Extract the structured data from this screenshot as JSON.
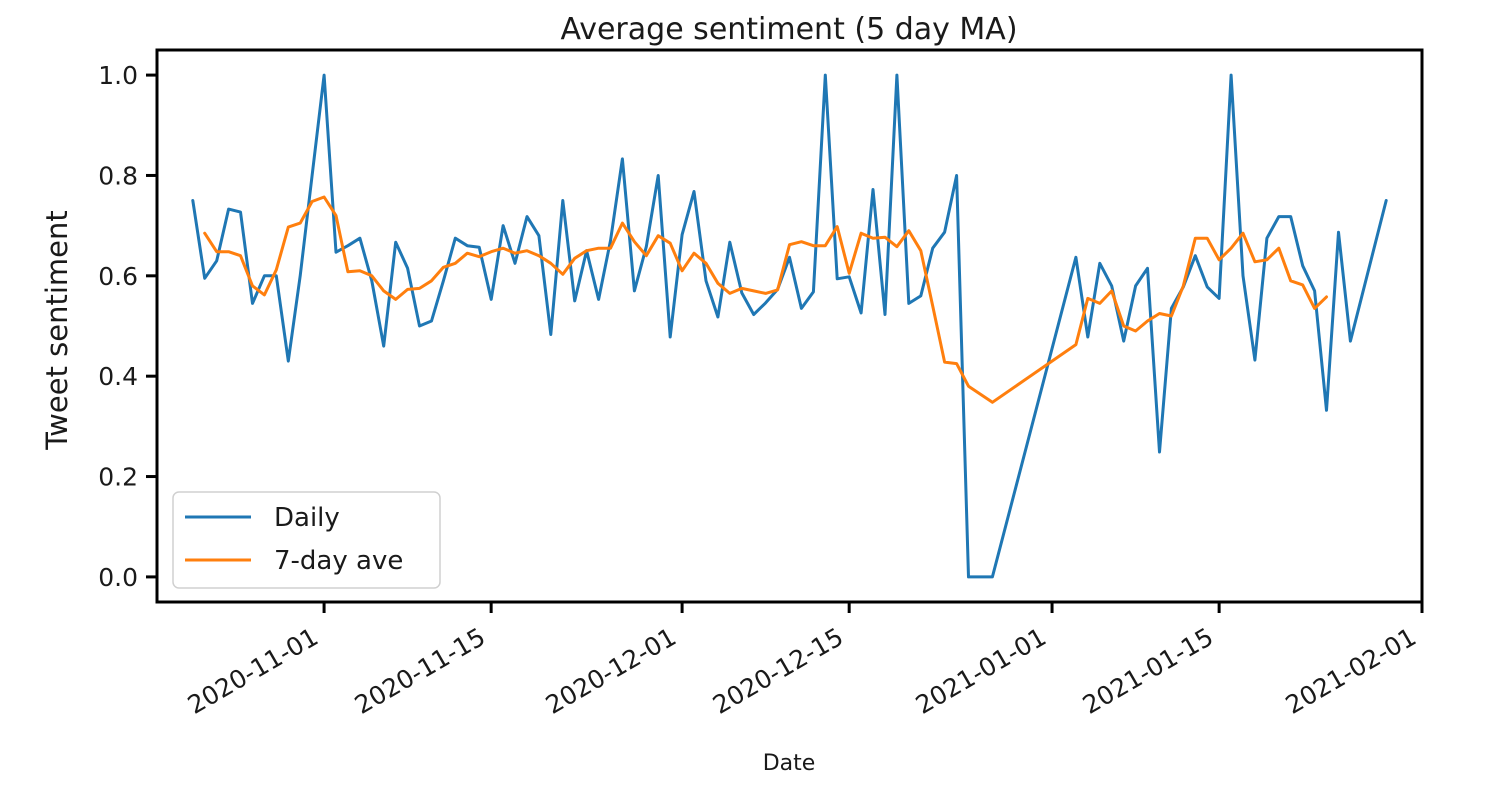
{
  "chart_data": {
    "type": "line",
    "title": "Average sentiment (5 day MA)",
    "xlabel": "Date",
    "ylabel": "Tweet sentiment",
    "xlim": [
      "2020-10-18",
      "2021-02-01"
    ],
    "ylim": [
      -0.05,
      1.05
    ],
    "yticks": [
      "0.0",
      "0.2",
      "0.4",
      "0.6",
      "0.8",
      "1.0"
    ],
    "xticks": [
      "2020-11-01",
      "2020-11-15",
      "2020-12-01",
      "2020-12-15",
      "2021-01-01",
      "2021-01-15",
      "2021-02-01"
    ],
    "grid": false,
    "legend_position": "lower-left",
    "series": [
      {
        "name": "Daily",
        "color": "#1f77b4",
        "points": [
          [
            "2020-10-21",
            0.75
          ],
          [
            "2020-10-22",
            0.595
          ],
          [
            "2020-10-23",
            0.63
          ],
          [
            "2020-10-24",
            0.733
          ],
          [
            "2020-10-25",
            0.727
          ],
          [
            "2020-10-26",
            0.545
          ],
          [
            "2020-10-27",
            0.6
          ],
          [
            "2020-10-28",
            0.6
          ],
          [
            "2020-10-29",
            0.43
          ],
          [
            "2020-10-30",
            0.6
          ],
          [
            "2020-10-31",
            0.8
          ],
          [
            "2020-11-01",
            1.0
          ],
          [
            "2020-11-02",
            0.647
          ],
          [
            "2020-11-03",
            0.66
          ],
          [
            "2020-11-04",
            0.675
          ],
          [
            "2020-11-05",
            0.59
          ],
          [
            "2020-11-06",
            0.46
          ],
          [
            "2020-11-07",
            0.667
          ],
          [
            "2020-11-08",
            0.615
          ],
          [
            "2020-11-09",
            0.5
          ],
          [
            "2020-11-10",
            0.51
          ],
          [
            "2020-11-11",
            0.59
          ],
          [
            "2020-11-12",
            0.675
          ],
          [
            "2020-11-13",
            0.66
          ],
          [
            "2020-11-14",
            0.657
          ],
          [
            "2020-11-15",
            0.553
          ],
          [
            "2020-11-16",
            0.7
          ],
          [
            "2020-11-17",
            0.625
          ],
          [
            "2020-11-18",
            0.718
          ],
          [
            "2020-11-19",
            0.68
          ],
          [
            "2020-11-20",
            0.483
          ],
          [
            "2020-11-21",
            0.75
          ],
          [
            "2020-11-22",
            0.55
          ],
          [
            "2020-11-23",
            0.65
          ],
          [
            "2020-11-24",
            0.553
          ],
          [
            "2020-11-25",
            0.67
          ],
          [
            "2020-11-26",
            0.833
          ],
          [
            "2020-11-27",
            0.57
          ],
          [
            "2020-11-28",
            0.658
          ],
          [
            "2020-11-29",
            0.8
          ],
          [
            "2020-11-30",
            0.478
          ],
          [
            "2020-12-01",
            0.682
          ],
          [
            "2020-12-02",
            0.768
          ],
          [
            "2020-12-03",
            0.59
          ],
          [
            "2020-12-04",
            0.518
          ],
          [
            "2020-12-05",
            0.667
          ],
          [
            "2020-12-06",
            0.566
          ],
          [
            "2020-12-07",
            0.523
          ],
          [
            "2020-12-08",
            0.546
          ],
          [
            "2020-12-09",
            0.573
          ],
          [
            "2020-12-10",
            0.637
          ],
          [
            "2020-12-11",
            0.535
          ],
          [
            "2020-12-12",
            0.568
          ],
          [
            "2020-12-13",
            1.0
          ],
          [
            "2020-12-14",
            0.594
          ],
          [
            "2020-12-15",
            0.598
          ],
          [
            "2020-12-16",
            0.526
          ],
          [
            "2020-12-17",
            0.772
          ],
          [
            "2020-12-18",
            0.523
          ],
          [
            "2020-12-19",
            1.0
          ],
          [
            "2020-12-20",
            0.545
          ],
          [
            "2020-12-21",
            0.56
          ],
          [
            "2020-12-22",
            0.655
          ],
          [
            "2020-12-23",
            0.687
          ],
          [
            "2020-12-24",
            0.8
          ],
          [
            "2020-12-25",
            0.0
          ],
          [
            "2020-12-27",
            0.0
          ],
          [
            "2021-01-03",
            0.637
          ],
          [
            "2021-01-04",
            0.478
          ],
          [
            "2021-01-05",
            0.625
          ],
          [
            "2021-01-06",
            0.58
          ],
          [
            "2021-01-07",
            0.47
          ],
          [
            "2021-01-08",
            0.58
          ],
          [
            "2021-01-09",
            0.615
          ],
          [
            "2021-01-10",
            0.249
          ],
          [
            "2021-01-11",
            0.535
          ],
          [
            "2021-01-12",
            0.578
          ],
          [
            "2021-01-13",
            0.64
          ],
          [
            "2021-01-14",
            0.578
          ],
          [
            "2021-01-15",
            0.555
          ],
          [
            "2021-01-16",
            1.0
          ],
          [
            "2021-01-17",
            0.6
          ],
          [
            "2021-01-18",
            0.432
          ],
          [
            "2021-01-19",
            0.675
          ],
          [
            "2021-01-20",
            0.718
          ],
          [
            "2021-01-21",
            0.718
          ],
          [
            "2021-01-22",
            0.62
          ],
          [
            "2021-01-23",
            0.57
          ],
          [
            "2021-01-24",
            0.332
          ],
          [
            "2021-01-25",
            0.687
          ],
          [
            "2021-01-26",
            0.47
          ],
          [
            "2021-01-29",
            0.75
          ]
        ]
      },
      {
        "name": "7-day ave",
        "color": "#ff7f0e",
        "points": [
          [
            "2020-10-22",
            0.685
          ],
          [
            "2020-10-23",
            0.648
          ],
          [
            "2020-10-24",
            0.648
          ],
          [
            "2020-10-25",
            0.64
          ],
          [
            "2020-10-26",
            0.58
          ],
          [
            "2020-10-27",
            0.562
          ],
          [
            "2020-10-28",
            0.612
          ],
          [
            "2020-10-29",
            0.697
          ],
          [
            "2020-10-30",
            0.705
          ],
          [
            "2020-10-31",
            0.748
          ],
          [
            "2020-11-01",
            0.757
          ],
          [
            "2020-11-02",
            0.72
          ],
          [
            "2020-11-03",
            0.608
          ],
          [
            "2020-11-04",
            0.61
          ],
          [
            "2020-11-05",
            0.6
          ],
          [
            "2020-11-06",
            0.57
          ],
          [
            "2020-11-07",
            0.553
          ],
          [
            "2020-11-08",
            0.573
          ],
          [
            "2020-11-09",
            0.575
          ],
          [
            "2020-11-10",
            0.59
          ],
          [
            "2020-11-11",
            0.617
          ],
          [
            "2020-11-12",
            0.625
          ],
          [
            "2020-11-13",
            0.645
          ],
          [
            "2020-11-14",
            0.638
          ],
          [
            "2020-11-15",
            0.648
          ],
          [
            "2020-11-16",
            0.655
          ],
          [
            "2020-11-17",
            0.645
          ],
          [
            "2020-11-18",
            0.65
          ],
          [
            "2020-11-19",
            0.64
          ],
          [
            "2020-11-20",
            0.625
          ],
          [
            "2020-11-21",
            0.603
          ],
          [
            "2020-11-22",
            0.635
          ],
          [
            "2020-11-23",
            0.65
          ],
          [
            "2020-11-24",
            0.655
          ],
          [
            "2020-11-25",
            0.655
          ],
          [
            "2020-11-26",
            0.705
          ],
          [
            "2020-11-27",
            0.668
          ],
          [
            "2020-11-28",
            0.64
          ],
          [
            "2020-11-29",
            0.68
          ],
          [
            "2020-11-30",
            0.665
          ],
          [
            "2020-12-01",
            0.61
          ],
          [
            "2020-12-02",
            0.645
          ],
          [
            "2020-12-03",
            0.625
          ],
          [
            "2020-12-04",
            0.585
          ],
          [
            "2020-12-05",
            0.565
          ],
          [
            "2020-12-06",
            0.575
          ],
          [
            "2020-12-07",
            0.57
          ],
          [
            "2020-12-08",
            0.565
          ],
          [
            "2020-12-09",
            0.572
          ],
          [
            "2020-12-10",
            0.662
          ],
          [
            "2020-12-11",
            0.668
          ],
          [
            "2020-12-12",
            0.66
          ],
          [
            "2020-12-13",
            0.66
          ],
          [
            "2020-12-14",
            0.698
          ],
          [
            "2020-12-15",
            0.605
          ],
          [
            "2020-12-16",
            0.685
          ],
          [
            "2020-12-17",
            0.675
          ],
          [
            "2020-12-18",
            0.677
          ],
          [
            "2020-12-19",
            0.658
          ],
          [
            "2020-12-20",
            0.69
          ],
          [
            "2020-12-21",
            0.65
          ],
          [
            "2020-12-22",
            0.54
          ],
          [
            "2020-12-23",
            0.428
          ],
          [
            "2020-12-24",
            0.425
          ],
          [
            "2020-12-25",
            0.38
          ],
          [
            "2020-12-27",
            0.348
          ],
          [
            "2021-01-03",
            0.463
          ],
          [
            "2021-01-04",
            0.555
          ],
          [
            "2021-01-05",
            0.545
          ],
          [
            "2021-01-06",
            0.57
          ],
          [
            "2021-01-07",
            0.5
          ],
          [
            "2021-01-08",
            0.49
          ],
          [
            "2021-01-09",
            0.51
          ],
          [
            "2021-01-10",
            0.525
          ],
          [
            "2021-01-11",
            0.52
          ],
          [
            "2021-01-12",
            0.58
          ],
          [
            "2021-01-13",
            0.675
          ],
          [
            "2021-01-14",
            0.675
          ],
          [
            "2021-01-15",
            0.632
          ],
          [
            "2021-01-16",
            0.655
          ],
          [
            "2021-01-17",
            0.685
          ],
          [
            "2021-01-18",
            0.628
          ],
          [
            "2021-01-19",
            0.632
          ],
          [
            "2021-01-20",
            0.655
          ],
          [
            "2021-01-21",
            0.59
          ],
          [
            "2021-01-22",
            0.582
          ],
          [
            "2021-01-23",
            0.535
          ],
          [
            "2021-01-24",
            0.558
          ]
        ]
      }
    ]
  }
}
